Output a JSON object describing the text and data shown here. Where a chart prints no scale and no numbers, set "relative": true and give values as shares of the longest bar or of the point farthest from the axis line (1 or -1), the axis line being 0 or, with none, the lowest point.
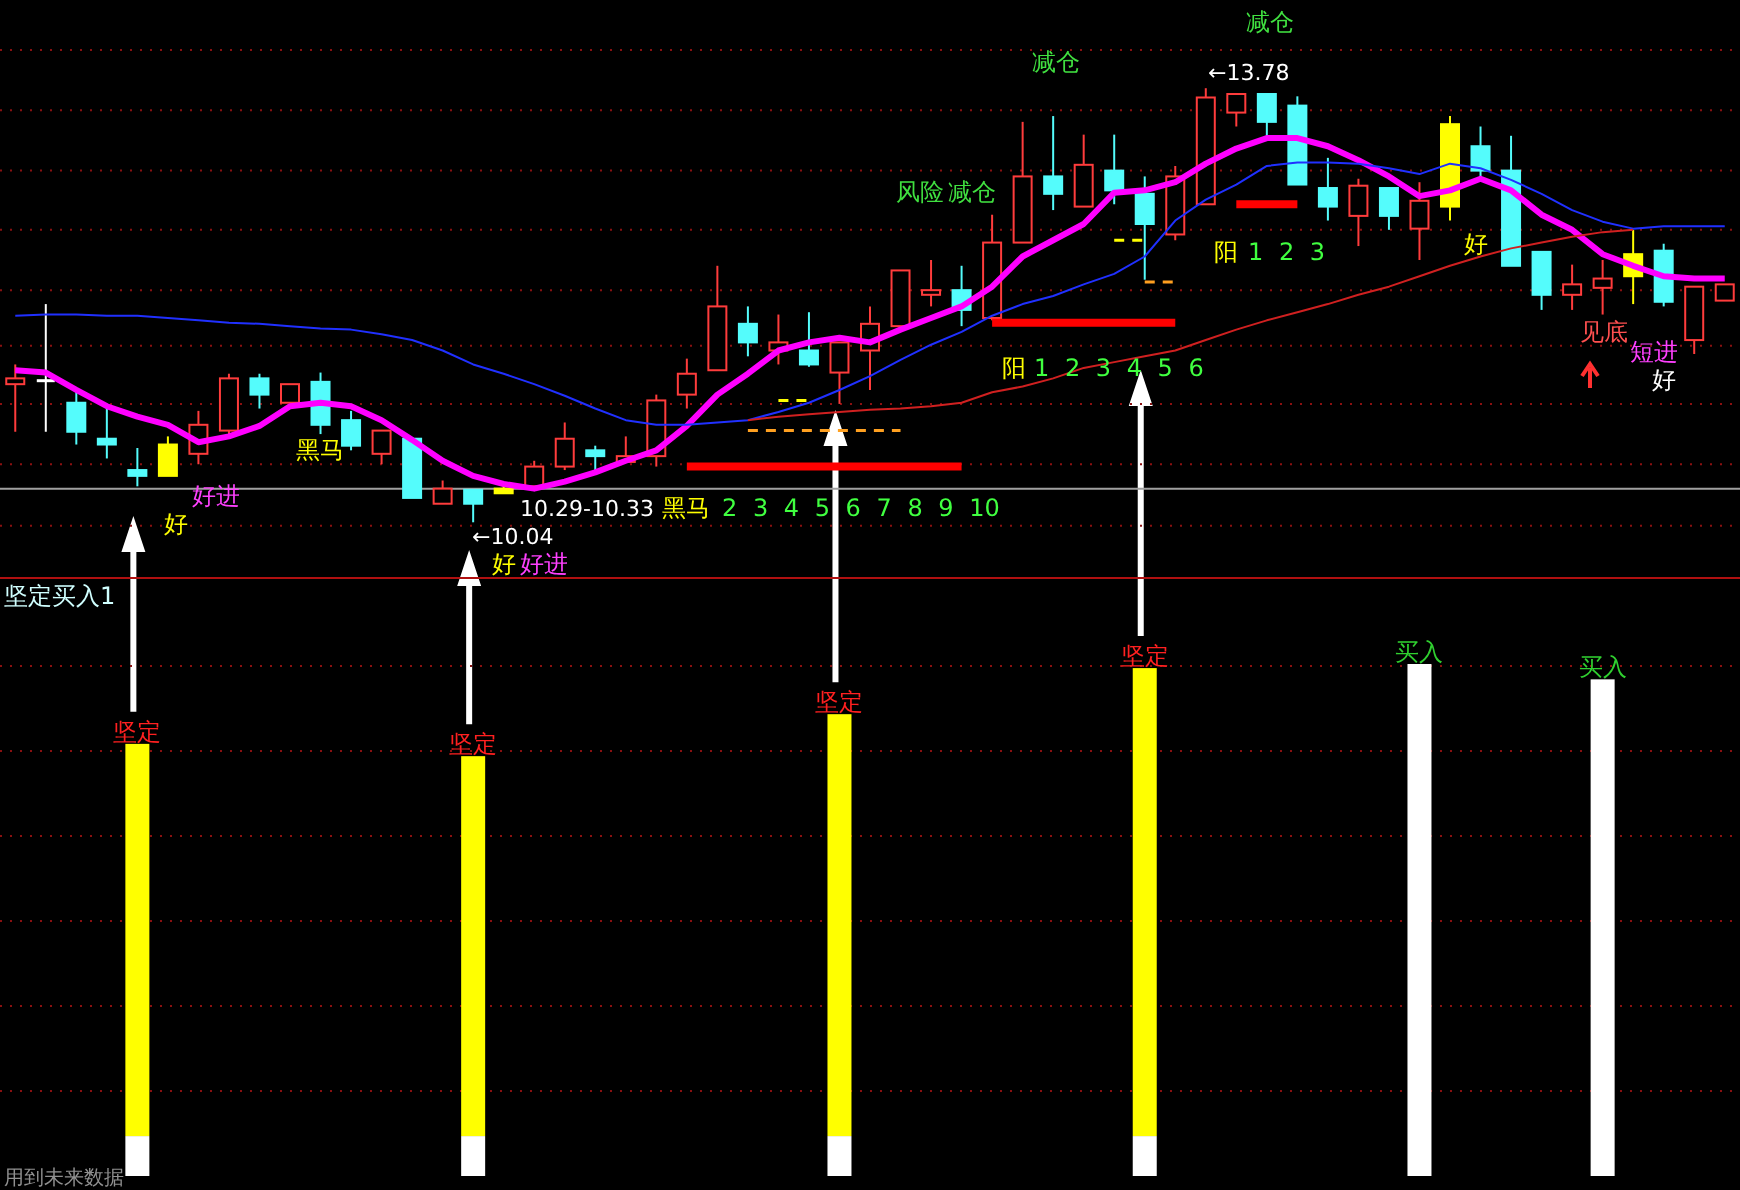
{
  "chart_data": [
    {
      "type": "candlestick",
      "categories": [
        null,
        null,
        null,
        null,
        null,
        null,
        null,
        null,
        null,
        null,
        null,
        null,
        null,
        null,
        null,
        null,
        null,
        null,
        null,
        null,
        null,
        null,
        null,
        null,
        null,
        null,
        null,
        null,
        null,
        null,
        null,
        null,
        null,
        null,
        null,
        null,
        null,
        null,
        null,
        null,
        null,
        null,
        null,
        null,
        null,
        null,
        null,
        null,
        null,
        null,
        null,
        null,
        null,
        null,
        null,
        null,
        null
      ],
      "ohlc": [
        [
          11.23,
          11.4,
          10.82,
          11.28
        ],
        [
          11.26,
          11.92,
          10.82,
          11.26
        ],
        [
          11.07,
          11.18,
          10.71,
          10.82
        ],
        [
          10.76,
          11.06,
          10.59,
          10.71
        ],
        [
          10.49,
          10.68,
          10.35,
          10.44
        ],
        [
          10.44,
          10.78,
          10.44,
          10.71
        ],
        [
          10.63,
          11.0,
          10.54,
          10.88
        ],
        [
          10.83,
          11.32,
          10.8,
          11.28
        ],
        [
          11.28,
          11.32,
          11.02,
          11.14
        ],
        [
          11.07,
          11.23,
          11.07,
          11.23
        ],
        [
          11.25,
          11.33,
          10.8,
          10.88
        ],
        [
          10.92,
          11.0,
          10.66,
          10.7
        ],
        [
          10.63,
          10.83,
          10.54,
          10.83
        ],
        [
          10.76,
          10.76,
          10.25,
          10.25
        ],
        [
          10.2,
          10.4,
          10.2,
          10.33
        ],
        [
          10.32,
          10.32,
          10.04,
          10.2
        ],
        [
          10.29,
          10.35,
          10.29,
          10.33
        ],
        [
          10.35,
          10.57,
          10.35,
          10.52
        ],
        [
          10.52,
          10.9,
          10.49,
          10.76
        ],
        [
          10.66,
          10.7,
          10.47,
          10.61
        ],
        [
          10.56,
          10.78,
          10.56,
          10.61
        ],
        [
          10.61,
          11.14,
          10.52,
          11.09
        ],
        [
          11.14,
          11.45,
          11.02,
          11.32
        ],
        [
          11.35,
          12.25,
          11.35,
          11.9
        ],
        [
          11.75,
          11.9,
          11.47,
          11.59
        ],
        [
          11.52,
          11.83,
          11.4,
          11.59
        ],
        [
          11.52,
          11.85,
          11.38,
          11.4
        ],
        [
          11.33,
          11.59,
          11.06,
          11.59
        ],
        [
          11.52,
          11.9,
          11.18,
          11.75
        ],
        [
          11.73,
          12.21,
          11.73,
          12.21
        ],
        [
          12.0,
          12.3,
          11.9,
          12.04
        ],
        [
          12.04,
          12.25,
          11.73,
          11.87
        ],
        [
          11.8,
          12.69,
          11.78,
          12.45
        ],
        [
          12.45,
          13.49,
          12.45,
          13.02
        ],
        [
          13.02,
          13.54,
          12.73,
          12.87
        ],
        [
          12.76,
          13.38,
          12.76,
          13.12
        ],
        [
          13.07,
          13.38,
          12.78,
          12.9
        ],
        [
          12.87,
          13.02,
          12.13,
          12.61
        ],
        [
          12.52,
          13.11,
          12.47,
          13.02
        ],
        [
          12.78,
          13.78,
          12.78,
          13.7
        ],
        [
          13.57,
          13.73,
          13.45,
          13.73
        ],
        [
          13.73,
          13.73,
          13.33,
          13.49
        ],
        [
          13.63,
          13.71,
          12.95,
          12.95
        ],
        [
          12.92,
          13.18,
          12.64,
          12.76
        ],
        [
          12.68,
          13.0,
          12.42,
          12.94
        ],
        [
          12.92,
          12.92,
          12.56,
          12.68
        ],
        [
          12.57,
          12.97,
          12.3,
          12.81
        ],
        [
          12.76,
          13.54,
          12.64,
          13.47
        ],
        [
          13.28,
          13.45,
          12.99,
          13.07
        ],
        [
          13.07,
          13.37,
          12.25,
          12.25
        ],
        [
          12.37,
          12.37,
          11.87,
          12.0
        ],
        [
          12.0,
          12.26,
          11.87,
          12.09
        ],
        [
          12.06,
          12.3,
          11.83,
          12.14
        ],
        [
          12.16,
          12.56,
          11.92,
          12.35
        ],
        [
          12.38,
          12.44,
          11.9,
          11.94
        ],
        [
          11.61,
          12.07,
          11.49,
          12.07
        ],
        [
          11.95,
          12.09,
          11.95,
          12.09
        ]
      ],
      "colors": [
        "#ff3c3c",
        "#ffffff",
        "#54fcfc",
        "#54fcfc",
        "#54fcfc",
        "#ffff00",
        "#ff3c3c",
        "#ff3c3c",
        "#54fcfc",
        "#ff3c3c",
        "#54fcfc",
        "#54fcfc",
        "#ff3c3c",
        "#54fcfc",
        "#ff3c3c",
        "#54fcfc",
        "#ffff00",
        "#ff3c3c",
        "#ff3c3c",
        "#54fcfc",
        "#ff3c3c",
        "#ff3c3c",
        "#ff3c3c",
        "#ff3c3c",
        "#54fcfc",
        "#ff3c3c",
        "#54fcfc",
        "#ff3c3c",
        "#ff3c3c",
        "#ff3c3c",
        "#ff3c3c",
        "#54fcfc",
        "#ff3c3c",
        "#ff3c3c",
        "#54fcfc",
        "#ff3c3c",
        "#54fcfc",
        "#54fcfc",
        "#ff3c3c",
        "#ff3c3c",
        "#ff3c3c",
        "#54fcfc",
        "#54fcfc",
        "#54fcfc",
        "#ff3c3c",
        "#54fcfc",
        "#ff3c3c",
        "#ffff00",
        "#54fcfc",
        "#54fcfc",
        "#54fcfc",
        "#ff3c3c",
        "#ff3c3c",
        "#ffff00",
        "#54fcfc",
        "#ff3c3c",
        "#ff3c3c"
      ],
      "series": [
        {
          "type": "line",
          "color": "#ff00ff",
          "values": [
            11.35,
            11.33,
            11.18,
            11.04,
            10.95,
            10.88,
            10.73,
            10.78,
            10.87,
            11.04,
            11.07,
            11.04,
            10.92,
            10.75,
            10.57,
            10.44,
            10.37,
            10.33,
            10.39,
            10.47,
            10.57,
            10.66,
            10.87,
            11.14,
            11.32,
            11.52,
            11.59,
            11.63,
            11.59,
            11.7,
            11.8,
            11.9,
            12.07,
            12.33,
            12.47,
            12.61,
            12.88,
            12.9,
            12.97,
            13.13,
            13.26,
            13.35,
            13.35,
            13.28,
            13.16,
            13.02,
            12.85,
            12.9,
            13.0,
            12.9,
            12.69,
            12.56,
            12.35,
            12.25,
            12.16,
            12.14,
            12.14
          ]
        },
        {
          "type": "line",
          "color": "#2030ff",
          "values": [
            11.82,
            11.83,
            11.83,
            11.82,
            11.82,
            11.8,
            11.78,
            11.76,
            11.75,
            11.73,
            11.71,
            11.7,
            11.66,
            11.61,
            11.52,
            11.4,
            11.32,
            11.23,
            11.13,
            11.02,
            10.92,
            10.88,
            10.88,
            10.9,
            10.92,
            10.99,
            11.07,
            11.18,
            11.3,
            11.44,
            11.57,
            11.68,
            11.82,
            11.92,
            11.99,
            12.09,
            12.18,
            12.33,
            12.64,
            12.82,
            12.95,
            13.11,
            13.14,
            13.14,
            13.13,
            13.09,
            13.04,
            13.13,
            13.09,
            12.99,
            12.87,
            12.73,
            12.63,
            12.57,
            12.59,
            12.59,
            12.59
          ]
        },
        {
          "type": "line",
          "color": "#d02020",
          "values": [
            null,
            null,
            null,
            null,
            null,
            null,
            null,
            null,
            null,
            null,
            null,
            null,
            null,
            null,
            null,
            null,
            null,
            null,
            null,
            null,
            null,
            null,
            null,
            null,
            10.92,
            10.95,
            10.97,
            10.99,
            11.01,
            11.02,
            11.04,
            11.07,
            11.16,
            11.21,
            11.28,
            11.37,
            11.42,
            11.47,
            11.52,
            11.61,
            11.7,
            11.78,
            11.85,
            11.92,
            12.0,
            12.07,
            12.16,
            12.25,
            12.33,
            12.4,
            12.45,
            12.5,
            12.54,
            12.56,
            null,
            null,
            null
          ]
        },
        {
          "type": "line",
          "color": "#ff0000",
          "values": [
            null,
            null,
            null,
            null,
            null,
            null,
            null,
            null,
            null,
            null,
            null,
            null,
            null,
            null,
            null,
            null,
            null,
            null,
            null,
            null,
            null,
            null,
            10.52,
            10.52,
            10.52,
            10.52,
            10.52,
            10.52,
            10.52,
            10.52,
            10.52,
            10.52,
            null,
            null,
            null,
            null,
            null,
            null,
            null,
            null,
            null,
            null,
            null,
            null,
            null,
            null,
            null,
            null,
            null,
            null,
            null,
            null,
            null,
            null,
            null,
            null,
            null
          ]
        },
        {
          "type": "line",
          "color": "#ff0000",
          "values": [
            null,
            null,
            null,
            null,
            null,
            null,
            null,
            null,
            null,
            null,
            null,
            null,
            null,
            null,
            null,
            null,
            null,
            null,
            null,
            null,
            null,
            null,
            null,
            null,
            null,
            null,
            null,
            null,
            null,
            null,
            null,
            null,
            11.76,
            11.76,
            11.76,
            11.76,
            11.76,
            11.76,
            11.76,
            null,
            null,
            null,
            null,
            null,
            null,
            null,
            null,
            null,
            null,
            null,
            null,
            null,
            null,
            null,
            null,
            null,
            null
          ]
        },
        {
          "type": "line",
          "color": "#ff0000",
          "values": [
            null,
            null,
            null,
            null,
            null,
            null,
            null,
            null,
            null,
            null,
            null,
            null,
            null,
            null,
            null,
            null,
            null,
            null,
            null,
            null,
            null,
            null,
            null,
            null,
            null,
            null,
            null,
            null,
            null,
            null,
            null,
            null,
            null,
            null,
            null,
            null,
            null,
            null,
            null,
            null,
            12.78,
            12.78,
            12.78,
            null,
            null,
            null,
            null,
            null,
            null,
            null,
            null,
            null,
            null,
            null,
            null,
            null,
            null
          ]
        },
        {
          "type": "line",
          "color": "#ffa020",
          "line_style": "dashed",
          "values": [
            null,
            null,
            null,
            null,
            null,
            null,
            null,
            null,
            null,
            null,
            null,
            null,
            null,
            null,
            null,
            null,
            null,
            null,
            null,
            null,
            null,
            null,
            null,
            null,
            10.83,
            10.83,
            10.83,
            10.83,
            10.83,
            10.83,
            null,
            null,
            null,
            null,
            null,
            null,
            null,
            null,
            null,
            null,
            null,
            null,
            null,
            null,
            null,
            null,
            null,
            null,
            null,
            null,
            null,
            null,
            null,
            null,
            null,
            null,
            null
          ]
        },
        {
          "type": "line",
          "color": "#ffa020",
          "line_style": "dashed",
          "values": [
            null,
            null,
            null,
            null,
            null,
            null,
            null,
            null,
            null,
            null,
            null,
            null,
            null,
            null,
            null,
            null,
            null,
            null,
            null,
            null,
            null,
            null,
            null,
            null,
            null,
            null,
            null,
            null,
            null,
            null,
            null,
            null,
            null,
            null,
            null,
            null,
            null,
            12.11,
            12.11,
            null,
            null,
            null,
            null,
            null,
            null,
            null,
            null,
            null,
            null,
            null,
            null,
            null,
            null,
            null,
            null,
            null,
            null
          ]
        },
        {
          "type": "line",
          "color": "#ffff00",
          "line_style": "dashed",
          "values": [
            null,
            null,
            null,
            null,
            null,
            null,
            null,
            null,
            null,
            null,
            null,
            null,
            null,
            null,
            null,
            null,
            null,
            null,
            null,
            null,
            null,
            null,
            null,
            null,
            null,
            11.09,
            11.09,
            null,
            null,
            null,
            null,
            null,
            null,
            null,
            null,
            null,
            null,
            null,
            null,
            null,
            null,
            null,
            null,
            null,
            null,
            null,
            null,
            null,
            null,
            null,
            null,
            null,
            null,
            null,
            null,
            null,
            null
          ]
        },
        {
          "type": "line",
          "color": "#ffff00",
          "line_style": "dashed",
          "values": [
            null,
            null,
            null,
            null,
            null,
            null,
            null,
            null,
            null,
            null,
            null,
            null,
            null,
            null,
            null,
            null,
            null,
            null,
            null,
            null,
            null,
            null,
            null,
            null,
            null,
            null,
            null,
            null,
            null,
            null,
            null,
            null,
            null,
            null,
            null,
            null,
            12.47,
            12.47,
            null,
            null,
            null,
            null,
            null,
            null,
            null,
            null,
            null,
            null,
            null,
            null,
            null,
            null,
            null,
            null,
            null,
            null,
            null
          ]
        }
      ],
      "ylim": [
        9.56,
        14.54
      ],
      "yticks": [
        {
          "value": 10.01,
          "label": null
        },
        {
          "value": 10.54,
          "label": null
        },
        {
          "value": 11.06,
          "label": null
        },
        {
          "value": 11.56,
          "label": null
        },
        {
          "value": 12.04,
          "label": null
        },
        {
          "value": 12.56,
          "label": null
        },
        {
          "value": 13.07,
          "label": null
        },
        {
          "value": 13.59,
          "label": null
        },
        {
          "value": 14.11,
          "label": null
        }
      ],
      "grid": true,
      "ref_lines": [
        {
          "axis": "y",
          "value": 10.33,
          "color": "#a0a0a0"
        }
      ],
      "annotations": [
        "好进",
        "好",
        "黑马",
        "←10.04",
        "10.29-10.33",
        "好",
        "好进",
        "黑马",
        "2 3 4 5 6 7 8 9 10",
        "风险",
        "减仓",
        "减仓",
        "减仓",
        "←13.78",
        "阳",
        "1 2 3 4 5 6",
        "阳",
        "1 2 3",
        "好",
        "见底",
        "短进",
        "好"
      ]
    },
    {
      "type": "bar",
      "title": "坚定买入1",
      "stacked": true,
      "relative": true,
      "ref_lines": [
        {
          "axis": "y",
          "value": 0.166,
          "color": "#8a1010",
          "line_style": "dotted"
        },
        {
          "axis": "y",
          "value": 0.332,
          "color": "#8a1010",
          "line_style": "dotted"
        },
        {
          "axis": "y",
          "value": 0.498,
          "color": "#8a1010",
          "line_style": "dotted"
        },
        {
          "axis": "y",
          "value": 0.664,
          "color": "#8a1010",
          "line_style": "dotted"
        },
        {
          "axis": "y",
          "value": 0.83,
          "color": "#8a1010",
          "line_style": "dotted"
        },
        {
          "axis": "y",
          "value": 0.996,
          "color": "#8a1010",
          "line_style": "dotted"
        }
      ],
      "categories": [
        null,
        null,
        null,
        null,
        null,
        null,
        null,
        null,
        null,
        null,
        null,
        null,
        null,
        null,
        null,
        null,
        null,
        null,
        null,
        null,
        null,
        null,
        null,
        null,
        null,
        null,
        null,
        null,
        null,
        null,
        null,
        null,
        null,
        null,
        null,
        null,
        null,
        null,
        null,
        null,
        null,
        null,
        null,
        null,
        null,
        null,
        null,
        null,
        null,
        null,
        null,
        null,
        null,
        null,
        null,
        null,
        null
      ],
      "series": [
        {
          "color": "#ffffff",
          "values": [
            null,
            null,
            null,
            null,
            0.078,
            null,
            null,
            null,
            null,
            null,
            null,
            null,
            null,
            null,
            null,
            0.078,
            null,
            null,
            null,
            null,
            null,
            null,
            null,
            null,
            null,
            null,
            null,
            0.078,
            null,
            null,
            null,
            null,
            null,
            null,
            null,
            null,
            null,
            0.078,
            null,
            null,
            null,
            null,
            null,
            null,
            null,
            null,
            1,
            null,
            null,
            null,
            null,
            null,
            0.97,
            null,
            null,
            null,
            null
          ]
        },
        {
          "color": "#ffff00",
          "values": [
            null,
            null,
            null,
            null,
            0.766,
            null,
            null,
            null,
            null,
            null,
            null,
            null,
            null,
            null,
            null,
            0.742,
            null,
            null,
            null,
            null,
            null,
            null,
            null,
            null,
            null,
            null,
            null,
            0.824,
            null,
            null,
            null,
            null,
            null,
            null,
            null,
            null,
            null,
            0.914,
            null,
            null,
            null,
            null,
            null,
            null,
            null,
            null,
            null,
            null,
            null,
            null,
            null,
            null,
            null,
            null,
            null,
            null,
            null
          ]
        }
      ],
      "annotations": [
        "用到未来数据",
        {
          "text": "坚定",
          "y": 0.844
        },
        {
          "text": "坚定",
          "y": 0.82
        },
        {
          "text": "坚定",
          "y": 0.902
        },
        {
          "text": "坚定",
          "y": 0.992
        },
        {
          "text": "买入",
          "y": 1
        },
        {
          "text": "买入",
          "y": 0.97
        }
      ]
    }
  ]
}
